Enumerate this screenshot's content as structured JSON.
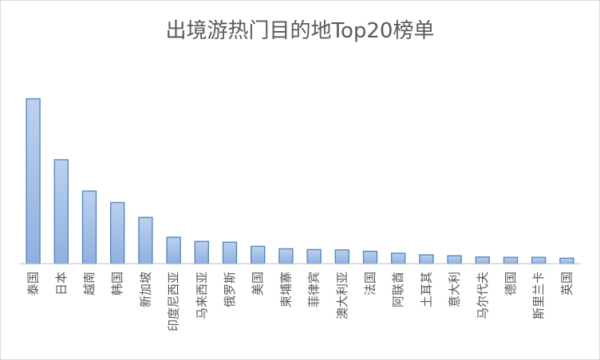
{
  "chart_data": {
    "type": "bar",
    "title": "出境游热门目的地Top20榜单",
    "categories": [
      "泰国",
      "日本",
      "越南",
      "韩国",
      "新加坡",
      "印度尼西亚",
      "马来西亚",
      "俄罗斯",
      "美国",
      "柬埔寨",
      "菲律宾",
      "澳大利亚",
      "法国",
      "阿联酋",
      "土耳其",
      "意大利",
      "马尔代夫",
      "德国",
      "斯里兰卡",
      "英国"
    ],
    "values": [
      100,
      63,
      44,
      37,
      28,
      16,
      13.5,
      13,
      10.5,
      9,
      8.5,
      8.3,
      7.5,
      6.3,
      5.3,
      4.8,
      4,
      3.8,
      3.8,
      3.3
    ],
    "ylim": [
      0,
      110
    ],
    "xlabel": "",
    "ylabel": "",
    "grid": false,
    "legend": "none",
    "colors": {
      "bar_top": "#bcd1ee",
      "bar_bottom": "#8fb0e0",
      "bar_stroke": "#4f81bd",
      "axis": "#bfbfbf",
      "text": "#595959"
    }
  }
}
